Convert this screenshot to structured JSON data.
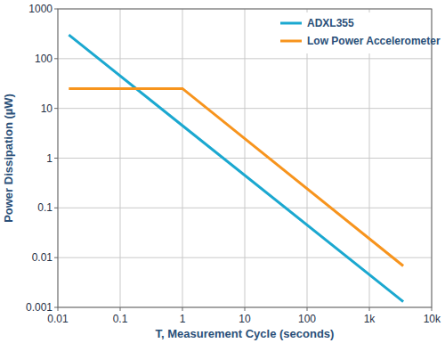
{
  "chart_data": {
    "type": "line",
    "x_label": "T, Measurement Cycle (seconds)",
    "y_label": "Power Dissipation (µW)",
    "x": [
      0.015,
      1,
      3500
    ],
    "series": [
      {
        "name": "ADXL355",
        "color": "#1ba8d0",
        "values": [
          300,
          4.5,
          0.0013
        ]
      },
      {
        "name": "Low Power Accelerometer",
        "color": "#f7941d",
        "values": [
          25,
          25,
          0.0068
        ]
      }
    ],
    "xlim": [
      0.01,
      10000
    ],
    "ylim": [
      0.001,
      1000
    ],
    "xticks": [
      0.01,
      0.1,
      1,
      10,
      100,
      {
        "value": 1000,
        "label": "1k"
      },
      {
        "value": 10000,
        "label": "10k"
      }
    ],
    "yticks": [
      0.001,
      0.01,
      0.1,
      1,
      10,
      100,
      1000
    ],
    "log": true,
    "grid": true,
    "legend": "upper right"
  }
}
